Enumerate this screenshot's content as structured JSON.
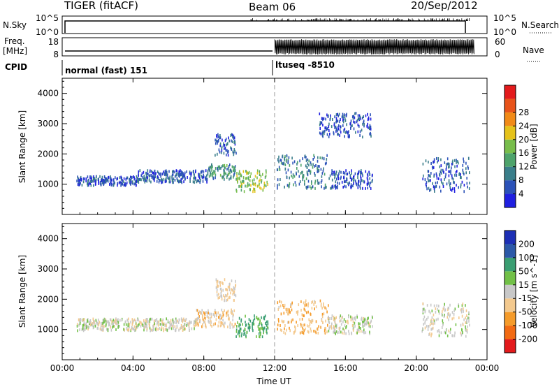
{
  "header": {
    "radar": "TIGER (fitACF)",
    "beam": "Beam 06",
    "date": "20/Sep/2012"
  },
  "params": {
    "nsky_label": "N.Sky",
    "nsky_ticks": [
      "10^5",
      "10^0"
    ],
    "nsearch_label": "N.Search",
    "nsearch_ticks": [
      "10^5",
      "10^0"
    ],
    "freq_label_line1": "Freq.",
    "freq_label_line2": "[MHz]",
    "freq_ticks": [
      "18",
      "8"
    ],
    "nave_label": "Nave",
    "nave_ticks": [
      "60",
      "0"
    ],
    "cpid_label": "CPID",
    "cpid_before": "normal (fast) 151",
    "cpid_after": "ltuseq -8510",
    "cpid_change_hour": 12
  },
  "colors": {
    "power": [
      "#1f1fe0",
      "#2b52b8",
      "#3a7e8a",
      "#4ea36b",
      "#78bd4b",
      "#e5c21a",
      "#f18a17",
      "#e8531a",
      "#e31a1c"
    ],
    "velocity": [
      "#e31a1c",
      "#f26a12",
      "#f59b2a",
      "#f3c98e",
      "#c8c8c8",
      "#71c047",
      "#3a9e72",
      "#2c59a8",
      "#1d2fb5"
    ]
  },
  "chart_data": [
    {
      "type": "heatmap",
      "title": "",
      "xlabel": "",
      "ylabel": "Slant Range [km]",
      "xlim": [
        0,
        24
      ],
      "ylim": [
        0,
        4500
      ],
      "x_ticks": [
        0,
        4,
        8,
        12,
        16,
        20,
        24
      ],
      "y_ticks": [
        1000,
        2000,
        3000,
        4000
      ],
      "colorbar": {
        "label": "Power [dB]",
        "levels": [
          0,
          4,
          8,
          12,
          16,
          20,
          24,
          28,
          32
        ],
        "tick_labels": [
          "4",
          "8",
          "12",
          "16",
          "20",
          "24",
          "28"
        ]
      },
      "regions": [
        {
          "x": [
            0.8,
            4.2
          ],
          "y": [
            1000,
            1300
          ],
          "value": 6
        },
        {
          "x": [
            4.2,
            8.2
          ],
          "y": [
            1100,
            1500
          ],
          "value": 7
        },
        {
          "x": [
            8.2,
            9.8
          ],
          "y": [
            1200,
            1700
          ],
          "value": 12
        },
        {
          "x": [
            8.6,
            9.8
          ],
          "y": [
            2000,
            2700
          ],
          "value": 7
        },
        {
          "x": [
            9.8,
            11.6
          ],
          "y": [
            800,
            1500
          ],
          "value": 18
        },
        {
          "x": [
            12.1,
            15.0
          ],
          "y": [
            900,
            2000
          ],
          "value": 10
        },
        {
          "x": [
            15.0,
            17.5
          ],
          "y": [
            900,
            1500
          ],
          "value": 6
        },
        {
          "x": [
            14.5,
            17.5
          ],
          "y": [
            2600,
            3400
          ],
          "value": 5
        },
        {
          "x": [
            20.3,
            23.0
          ],
          "y": [
            800,
            1900
          ],
          "value": 7
        }
      ]
    },
    {
      "type": "heatmap",
      "title": "",
      "xlabel": "Time UT",
      "ylabel": "Slant Range [km]",
      "xlim": [
        0,
        24
      ],
      "ylim": [
        0,
        4500
      ],
      "x_ticks": [
        0,
        4,
        8,
        12,
        16,
        20,
        24
      ],
      "x_tick_labels": [
        "00:00",
        "04:00",
        "08:00",
        "12:00",
        "16:00",
        "20:00",
        "00:00"
      ],
      "y_ticks": [
        1000,
        2000,
        3000,
        4000
      ],
      "colorbar": {
        "label": "Velocity [m s^-1]",
        "levels": [
          -300,
          -200,
          -100,
          -50,
          -15,
          15,
          50,
          100,
          200,
          300
        ],
        "tick_labels": [
          "-200",
          "-100",
          "-50",
          "-15",
          "15",
          "50",
          "100",
          "200"
        ]
      },
      "regions": [
        {
          "x": [
            0.8,
            7.5
          ],
          "y": [
            1000,
            1400
          ],
          "value": 0
        },
        {
          "x": [
            7.5,
            9.8
          ],
          "y": [
            1100,
            1700
          ],
          "value": -30
        },
        {
          "x": [
            8.6,
            9.8
          ],
          "y": [
            2000,
            2700
          ],
          "value": -20
        },
        {
          "x": [
            9.8,
            11.6
          ],
          "y": [
            800,
            1500
          ],
          "value": 60
        },
        {
          "x": [
            12.1,
            15.0
          ],
          "y": [
            900,
            2000
          ],
          "value": -40
        },
        {
          "x": [
            15.0,
            17.5
          ],
          "y": [
            900,
            1500
          ],
          "value": 0
        },
        {
          "x": [
            20.3,
            23.0
          ],
          "y": [
            800,
            1900
          ],
          "value": 0
        }
      ]
    }
  ]
}
